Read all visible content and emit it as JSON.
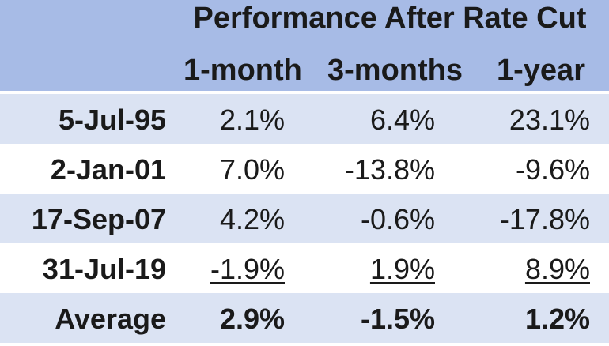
{
  "chart_data": {
    "type": "table",
    "title": "Performance After Rate Cut",
    "columns": [
      "1-month",
      "3-months",
      "1-year"
    ],
    "rows": [
      {
        "label": "5-Jul-95",
        "values": [
          "2.1%",
          "6.4%",
          "23.1%"
        ]
      },
      {
        "label": "2-Jan-01",
        "values": [
          "7.0%",
          "-13.8%",
          "-9.6%"
        ]
      },
      {
        "label": "17-Sep-07",
        "values": [
          "4.2%",
          "-0.6%",
          "-17.8%"
        ]
      },
      {
        "label": "31-Jul-19",
        "values": [
          "-1.9%",
          "1.9%",
          "8.9%"
        ]
      },
      {
        "label": "Average",
        "values": [
          "2.9%",
          "-1.5%",
          "1.2%"
        ]
      }
    ]
  },
  "colors": {
    "header_band": "#a7bbe6",
    "shaded_row": "#dbe3f3",
    "text": "#1a1a1a"
  }
}
